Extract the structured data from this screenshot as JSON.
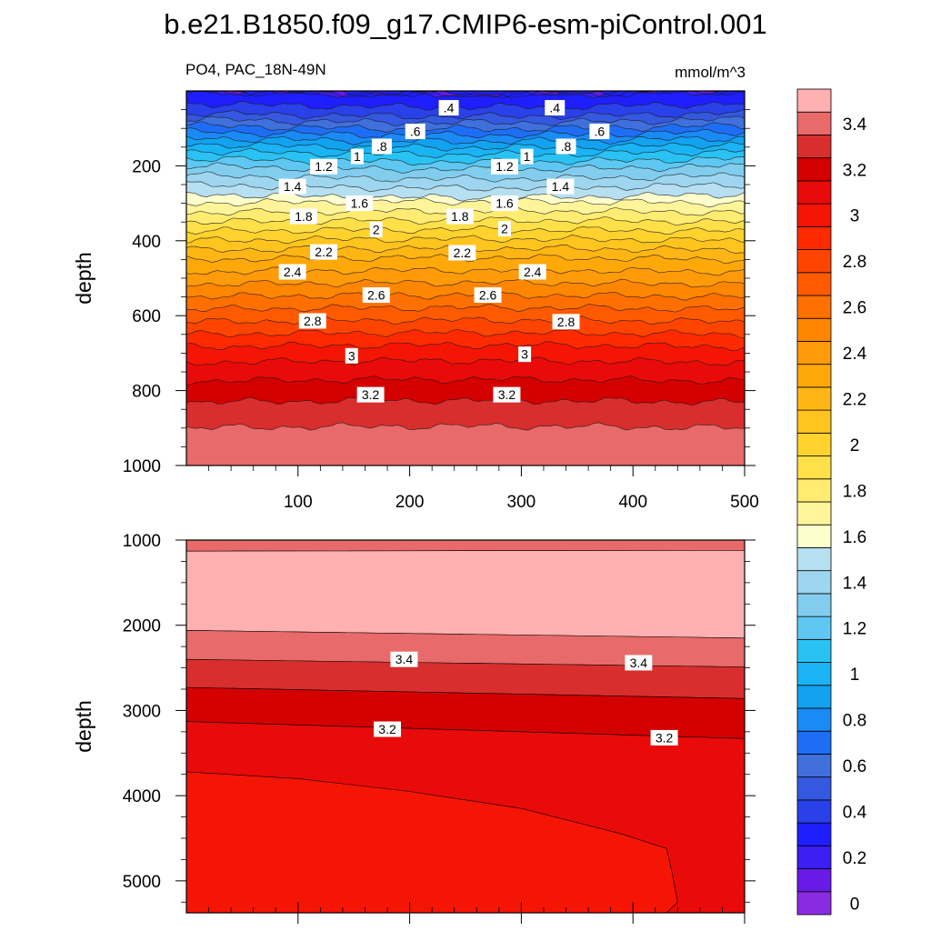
{
  "page_title": "b.e21.B1850.f09_g17.CMIP6-esm-piControl.001",
  "chart_data": {
    "type": "contour",
    "variable_label": "PO4, PAC_18N-49N",
    "units": "mmol/m^3",
    "levels": [
      0,
      0.1,
      0.2,
      0.3,
      0.4,
      0.5,
      0.6,
      0.7,
      0.8,
      0.9,
      1.0,
      1.1,
      1.2,
      1.3,
      1.4,
      1.5,
      1.6,
      1.7,
      1.8,
      1.9,
      2.0,
      2.1,
      2.2,
      2.3,
      2.4,
      2.5,
      2.6,
      2.7,
      2.8,
      2.9,
      3.0,
      3.1,
      3.2,
      3.3,
      3.4,
      3.5
    ],
    "colors": [
      "#8a2be2",
      "#6a1ae6",
      "#3c1ef0",
      "#1e1eff",
      "#2a40e8",
      "#3558e0",
      "#4070dc",
      "#1e6ef5",
      "#1a8af5",
      "#12a2f0",
      "#1ab4f4",
      "#2ac2f2",
      "#5ec8f2",
      "#82cdee",
      "#9ed6f0",
      "#b6e0f2",
      "#fefecc",
      "#fff49a",
      "#ffec70",
      "#ffe048",
      "#ffd22e",
      "#ffc41e",
      "#ffb614",
      "#ffa80a",
      "#ff9a08",
      "#ff8600",
      "#ff7000",
      "#ff5a00",
      "#ff4400",
      "#ff2a00",
      "#f51505",
      "#e90a0a",
      "#d40000",
      "#d82e2e",
      "#e86a6a",
      "#ffb0b0"
    ],
    "colorbar_labels": [
      "0",
      "0.2",
      "0.4",
      "0.6",
      "0.8",
      "1",
      "1.2",
      "1.4",
      "1.6",
      "1.8",
      "2",
      "2.2",
      "2.4",
      "2.6",
      "2.8",
      "3",
      "3.2",
      "3.4"
    ],
    "colorbar_label_values": [
      0,
      0.2,
      0.4,
      0.6,
      0.8,
      1.0,
      1.2,
      1.4,
      1.6,
      1.8,
      2.0,
      2.2,
      2.4,
      2.6,
      2.8,
      3.0,
      3.2,
      3.4
    ],
    "upper_panel": {
      "ylabel": "depth",
      "x_ticks": [
        100,
        200,
        300,
        400,
        500
      ],
      "x_tick_labels": [
        "100",
        "200",
        "300",
        "400",
        "500"
      ],
      "xlim": [
        0,
        500
      ],
      "y_ticks": [
        200,
        400,
        600,
        800,
        1000
      ],
      "y_tick_labels": [
        "200",
        "400",
        "600",
        "800",
        "1000"
      ],
      "ylim": [
        0,
        1000
      ],
      "profile_depths": [
        0,
        50,
        100,
        150,
        200,
        250,
        300,
        350,
        400,
        450,
        500,
        550,
        600,
        650,
        700,
        750,
        800,
        850,
        900,
        950,
        1000
      ],
      "profile_values": [
        0.3,
        0.45,
        0.75,
        1.05,
        1.3,
        1.5,
        1.7,
        1.9,
        2.1,
        2.3,
        2.45,
        2.6,
        2.75,
        2.9,
        3.05,
        3.15,
        3.25,
        3.33,
        3.4,
        3.42,
        3.45
      ],
      "contour_labels": [
        {
          "text": ".4",
          "x": 235,
          "y": 45
        },
        {
          "text": ".4",
          "x": 330,
          "y": 45
        },
        {
          "text": ".6",
          "x": 205,
          "y": 108
        },
        {
          "text": ".6",
          "x": 370,
          "y": 108
        },
        {
          "text": ".8",
          "x": 175,
          "y": 148
        },
        {
          "text": ".8",
          "x": 340,
          "y": 148
        },
        {
          "text": "1",
          "x": 153,
          "y": 175
        },
        {
          "text": "1",
          "x": 305,
          "y": 175
        },
        {
          "text": "1.2",
          "x": 123,
          "y": 202
        },
        {
          "text": "1.2",
          "x": 285,
          "y": 202
        },
        {
          "text": "1.4",
          "x": 95,
          "y": 255
        },
        {
          "text": "1.4",
          "x": 335,
          "y": 255
        },
        {
          "text": "1.6",
          "x": 155,
          "y": 300
        },
        {
          "text": "1.6",
          "x": 285,
          "y": 300
        },
        {
          "text": "1.8",
          "x": 105,
          "y": 335
        },
        {
          "text": "1.8",
          "x": 245,
          "y": 335
        },
        {
          "text": "2",
          "x": 170,
          "y": 370
        },
        {
          "text": "2",
          "x": 285,
          "y": 368
        },
        {
          "text": "2.2",
          "x": 123,
          "y": 430
        },
        {
          "text": "2.2",
          "x": 247,
          "y": 432
        },
        {
          "text": "2.4",
          "x": 95,
          "y": 483
        },
        {
          "text": "2.4",
          "x": 310,
          "y": 483
        },
        {
          "text": "2.6",
          "x": 170,
          "y": 545
        },
        {
          "text": "2.6",
          "x": 270,
          "y": 545
        },
        {
          "text": "2.8",
          "x": 113,
          "y": 614
        },
        {
          "text": "2.8",
          "x": 340,
          "y": 616
        },
        {
          "text": "3",
          "x": 148,
          "y": 707
        },
        {
          "text": "3",
          "x": 303,
          "y": 703
        },
        {
          "text": "3.2",
          "x": 165,
          "y": 811
        },
        {
          "text": "3.2",
          "x": 287,
          "y": 811
        }
      ]
    },
    "lower_panel": {
      "ylabel": "depth",
      "xlim": [
        0,
        500
      ],
      "y_ticks": [
        1000,
        2000,
        3000,
        4000,
        5000
      ],
      "y_tick_labels": [
        "1000",
        "2000",
        "3000",
        "4000",
        "5000"
      ],
      "ylim": [
        1000,
        5375
      ],
      "bands": [
        {
          "value": 3.45,
          "top": [
            1000,
            1000
          ],
          "bottom": [
            1130,
            1120
          ]
        },
        {
          "value": 3.55,
          "top": [
            1130,
            1120
          ],
          "bottom": [
            2060,
            2150
          ]
        },
        {
          "value": 3.45,
          "top": [
            2060,
            2150
          ],
          "bottom": [
            2400,
            2490
          ]
        },
        {
          "value": 3.35,
          "top": [
            2400,
            2490
          ],
          "bottom": [
            2730,
            2860
          ]
        },
        {
          "value": 3.25,
          "top": [
            2730,
            2860
          ],
          "bottom": [
            3130,
            3330
          ]
        },
        {
          "value": 3.15,
          "top": [
            3130,
            3330
          ],
          "bottom": [
            5375,
            5375
          ]
        }
      ],
      "deep_region": {
        "value": 3.05,
        "boundary": [
          [
            0,
            3720
          ],
          [
            100,
            3800
          ],
          [
            200,
            3950
          ],
          [
            300,
            4150
          ],
          [
            390,
            4450
          ],
          [
            430,
            4620
          ],
          [
            435,
            4900
          ],
          [
            440,
            5250
          ],
          [
            430,
            5375
          ]
        ]
      },
      "contour_labels": [
        {
          "text": "3.4",
          "x": 195,
          "y": 2400
        },
        {
          "text": "3.4",
          "x": 405,
          "y": 2440
        },
        {
          "text": "3.2",
          "x": 180,
          "y": 3220
        },
        {
          "text": "3.2",
          "x": 428,
          "y": 3320
        }
      ]
    }
  }
}
